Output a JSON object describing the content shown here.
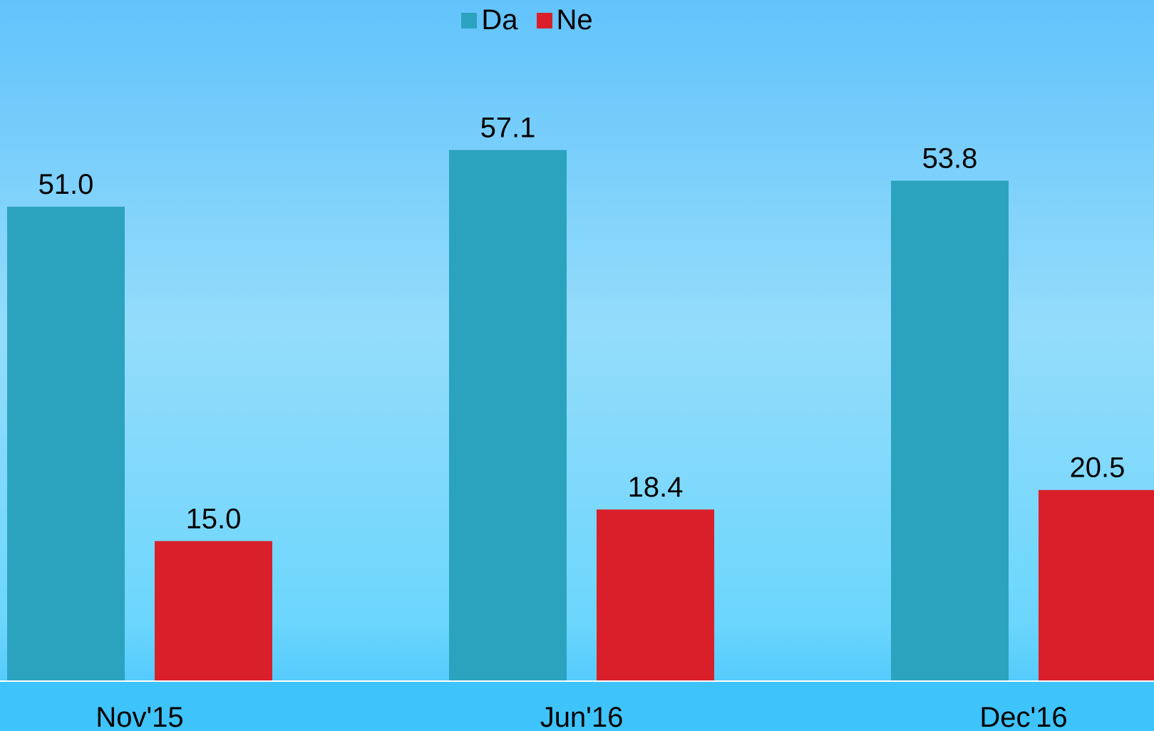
{
  "chart_data": {
    "type": "bar",
    "categories": [
      "Nov'15",
      "Jun'16",
      "Dec'16"
    ],
    "series": [
      {
        "name": "Da",
        "values": [
          51.0,
          57.1,
          53.8
        ],
        "color": "#2ca3be"
      },
      {
        "name": "Ne",
        "values": [
          15.0,
          18.4,
          20.5
        ],
        "color": "#d9202a"
      }
    ],
    "value_labels": [
      [
        "51.0",
        "57.1",
        "53.8"
      ],
      [
        "15.0",
        "18.4",
        "20.5"
      ]
    ],
    "title": "",
    "xlabel": "",
    "ylabel": "",
    "ylim": [
      0,
      66.5
    ],
    "grid": false,
    "legend_position": "top-center",
    "colors": {
      "axis_line": "#ffffff"
    }
  }
}
